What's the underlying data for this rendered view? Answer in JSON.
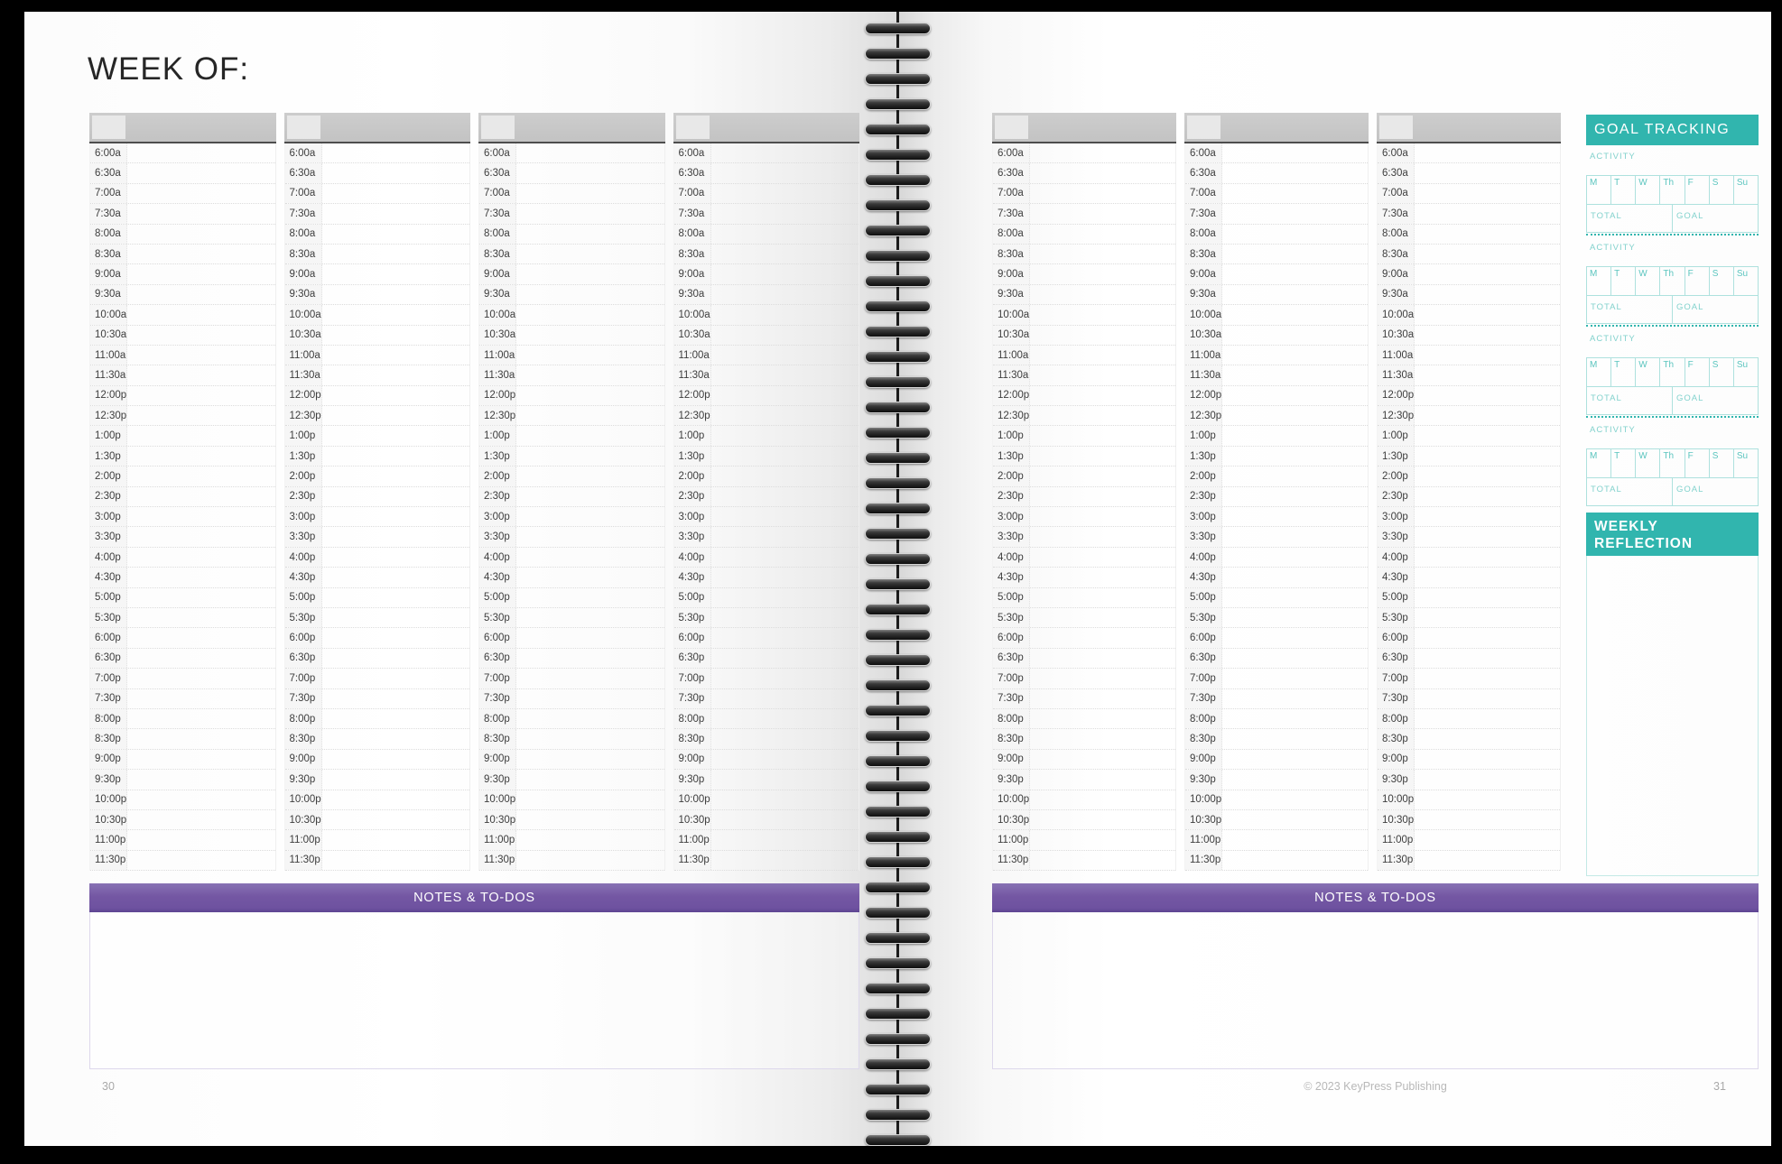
{
  "page": {
    "title": "WEEK OF:",
    "left_page_number": "30",
    "right_page_number": "31",
    "footer": "© 2023 KeyPress Publishing"
  },
  "schedule": {
    "times": [
      "6:00a",
      "6:30a",
      "7:00a",
      "7:30a",
      "8:00a",
      "8:30a",
      "9:00a",
      "9:30a",
      "10:00a",
      "10:30a",
      "11:00a",
      "11:30a",
      "12:00p",
      "12:30p",
      "1:00p",
      "1:30p",
      "2:00p",
      "2:30p",
      "3:00p",
      "3:30p",
      "4:00p",
      "4:30p",
      "5:00p",
      "5:30p",
      "6:00p",
      "6:30p",
      "7:00p",
      "7:30p",
      "8:00p",
      "8:30p",
      "9:00p",
      "9:30p",
      "10:00p",
      "10:30p",
      "11:00p",
      "11:30p"
    ],
    "left_column_count": 4,
    "right_column_count": 3
  },
  "notes": {
    "banner_label": "NOTES & TO-DOS"
  },
  "goal_tracking": {
    "title": "GOAL TRACKING",
    "activity_label": "ACTIVITY",
    "day_letters": [
      "M",
      "T",
      "W",
      "Th",
      "F",
      "S",
      "Su"
    ],
    "total_label": "TOTAL",
    "goal_label": "GOAL",
    "blocks": 4
  },
  "weekly_reflection": {
    "title": "WEEKLY REFLECTION"
  },
  "colors": {
    "teal": "#31b5ae",
    "purple": "#7457a3"
  }
}
